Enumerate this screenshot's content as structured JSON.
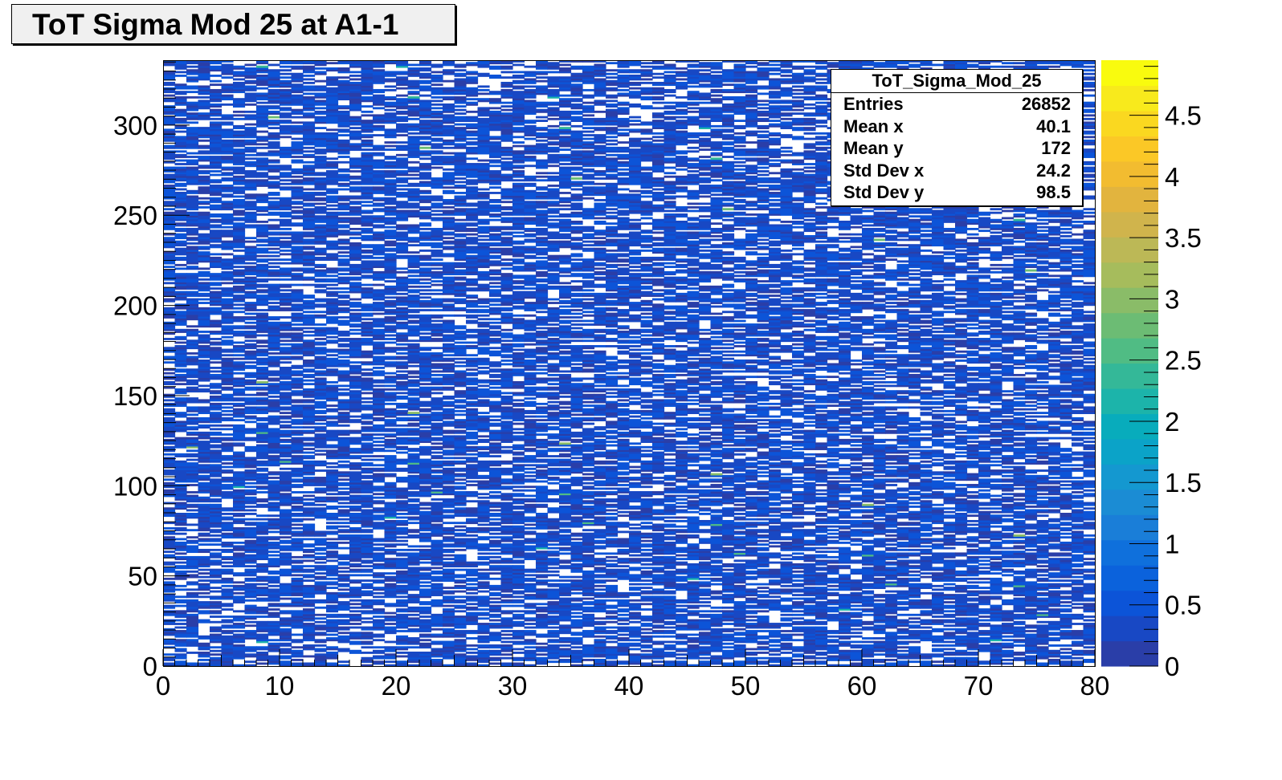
{
  "title": "ToT Sigma Mod 25 at A1-1",
  "stats": {
    "name": "ToT_Sigma_Mod_25",
    "rows": [
      {
        "label": "Entries",
        "value": "26852"
      },
      {
        "label": "Mean x",
        "value": "40.1"
      },
      {
        "label": "Mean y",
        "value": "172"
      },
      {
        "label": "Std Dev x",
        "value": "24.2"
      },
      {
        "label": "Std Dev y",
        "value": "98.5"
      }
    ]
  },
  "chart_data": {
    "type": "heatmap",
    "title": "ToT Sigma Mod 25 at A1-1",
    "xlabel": "",
    "ylabel": "",
    "xlim": [
      0,
      80
    ],
    "ylim": [
      0,
      336
    ],
    "x_bins": 80,
    "y_bins": 336,
    "x_ticks": [
      "0",
      "10",
      "20",
      "30",
      "40",
      "50",
      "60",
      "70",
      "80"
    ],
    "y_ticks": [
      "0",
      "50",
      "100",
      "150",
      "200",
      "250",
      "300"
    ],
    "z_range": [
      0,
      4.95
    ],
    "z_ticks": [
      "0",
      "0.5",
      "1",
      "1.5",
      "2",
      "2.5",
      "3",
      "3.5",
      "4",
      "4.5"
    ],
    "typical_value_range": [
      0.1,
      0.6
    ],
    "empty_bin_fraction": 0.3,
    "colormap": "kBird",
    "colorbar_colors": [
      "#2a3ea8",
      "#1848c4",
      "#0c54d8",
      "#0b62dc",
      "#0f70dc",
      "#1a7ed8",
      "#1b8cd4",
      "#1498d0",
      "#0ba3c8",
      "#08acbc",
      "#1cb4aa",
      "#34b898",
      "#50bc84",
      "#6cbc74",
      "#8abc68",
      "#a6bc5c",
      "#bcb856",
      "#d0b44c",
      "#e2b43e",
      "#f2bc30",
      "#fbc826",
      "#fad820",
      "#f8ea1c",
      "#f9fb0e"
    ]
  }
}
